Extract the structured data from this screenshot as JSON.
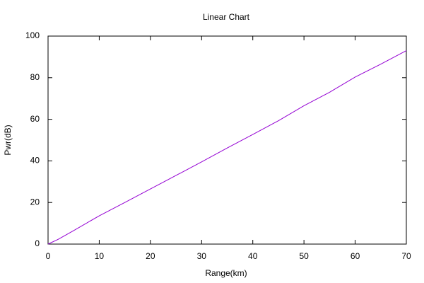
{
  "chart_data": {
    "type": "line",
    "title": "Linear Chart",
    "x_label": "Range(km)",
    "y_label": "Pwr(dB)",
    "x": [
      0,
      2,
      5,
      10,
      15,
      20,
      25,
      30,
      35,
      40,
      45,
      50,
      55,
      60,
      65,
      70
    ],
    "series": [
      {
        "name": "Pwr",
        "color": "#9400d3",
        "values": [
          0,
          2.3,
          6.5,
          13.6,
          20,
          26.5,
          33,
          39.5,
          46.2,
          52.7,
          59.3,
          66.5,
          73,
          80.3,
          86.5,
          93
        ]
      }
    ],
    "xlim": [
      0,
      70
    ],
    "xticks": [
      0,
      10,
      20,
      30,
      40,
      50,
      60,
      70
    ],
    "ylim": [
      0,
      100
    ],
    "yticks": [
      0,
      20,
      40,
      60,
      80,
      100
    ],
    "grid": false
  }
}
